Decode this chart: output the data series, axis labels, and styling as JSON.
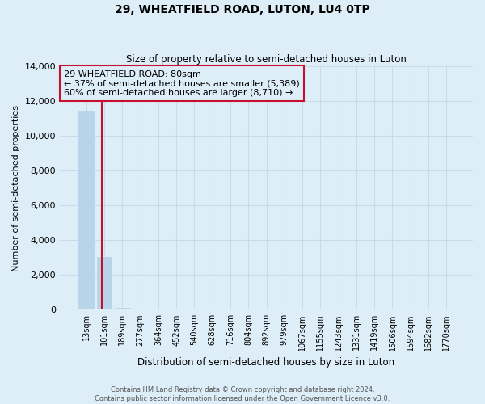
{
  "title": "29, WHEATFIELD ROAD, LUTON, LU4 0TP",
  "subtitle": "Size of property relative to semi-detached houses in Luton",
  "xlabel": "Distribution of semi-detached houses by size in Luton",
  "ylabel": "Number of semi-detached properties",
  "bar_labels": [
    "13sqm",
    "101sqm",
    "189sqm",
    "277sqm",
    "364sqm",
    "452sqm",
    "540sqm",
    "628sqm",
    "716sqm",
    "804sqm",
    "892sqm",
    "979sqm",
    "1067sqm",
    "1155sqm",
    "1243sqm",
    "1331sqm",
    "1419sqm",
    "1506sqm",
    "1594sqm",
    "1682sqm",
    "1770sqm"
  ],
  "bar_values": [
    11450,
    3050,
    130,
    0,
    0,
    0,
    0,
    0,
    0,
    0,
    0,
    0,
    0,
    0,
    0,
    0,
    0,
    0,
    0,
    0,
    0
  ],
  "bar_color": "#b8d4e8",
  "property_line_x": 0.88,
  "property_line_color": "#c8102e",
  "annotation_box_text": "29 WHEATFIELD ROAD: 80sqm\n← 37% of semi-detached houses are smaller (5,389)\n60% of semi-detached houses are larger (8,710) →",
  "annotation_box_edge_color": "#c8102e",
  "ylim": [
    0,
    14000
  ],
  "yticks": [
    0,
    2000,
    4000,
    6000,
    8000,
    10000,
    12000,
    14000
  ],
  "grid_color": "#c8dce8",
  "background_color": "#ddeef8",
  "footer_line1": "Contains HM Land Registry data © Crown copyright and database right 2024.",
  "footer_line2": "Contains public sector information licensed under the Open Government Licence v3.0."
}
